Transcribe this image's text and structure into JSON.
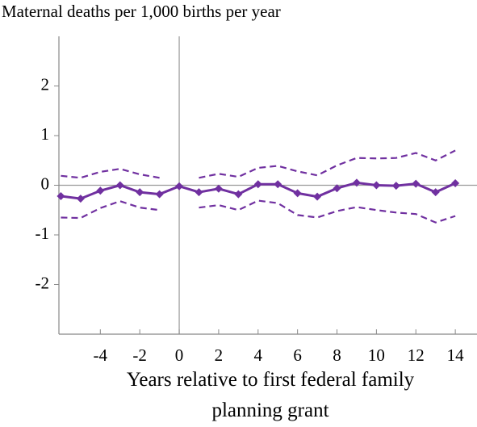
{
  "chart_data": {
    "type": "line",
    "title": "Maternal deaths per 1,000 births per year",
    "xlabel": "Years relative to first federal family planning grant",
    "x": [
      -6,
      -5,
      -4,
      -3,
      -2,
      -1,
      0,
      1,
      2,
      3,
      4,
      5,
      6,
      7,
      8,
      9,
      10,
      11,
      12,
      13,
      14
    ],
    "series": [
      {
        "color": "#7030a0",
        "style": "solid",
        "marker": "diamond",
        "values": [
          -0.22,
          -0.27,
          -0.11,
          0.0,
          -0.14,
          -0.18,
          -0.02,
          -0.14,
          -0.07,
          -0.18,
          0.02,
          0.02,
          -0.16,
          -0.23,
          -0.06,
          0.05,
          0.0,
          -0.01,
          0.03,
          -0.14,
          0.04
        ]
      },
      {
        "color": "#7030a0",
        "style": "dashed",
        "values": [
          0.19,
          0.15,
          0.27,
          0.33,
          0.22,
          0.15,
          null,
          0.15,
          0.23,
          0.17,
          0.35,
          0.39,
          0.28,
          0.2,
          0.4,
          0.55,
          0.54,
          0.55,
          0.65,
          0.5,
          0.7
        ]
      },
      {
        "color": "#7030a0",
        "style": "dashed",
        "values": [
          -0.65,
          -0.66,
          -0.46,
          -0.32,
          -0.45,
          -0.5,
          null,
          -0.45,
          -0.4,
          -0.5,
          -0.31,
          -0.36,
          -0.6,
          -0.65,
          -0.52,
          -0.44,
          -0.5,
          -0.55,
          -0.58,
          -0.75,
          -0.62
        ]
      }
    ],
    "xlim": [
      -6.1,
      15.1
    ],
    "ylim": [
      -3,
      3
    ],
    "xticks": [
      -4,
      -2,
      0,
      2,
      4,
      6,
      8,
      10,
      12,
      14
    ],
    "yticks": [
      -2,
      -1,
      0,
      1,
      2
    ],
    "reference_lines": {
      "x": 0,
      "y": 0
    }
  }
}
